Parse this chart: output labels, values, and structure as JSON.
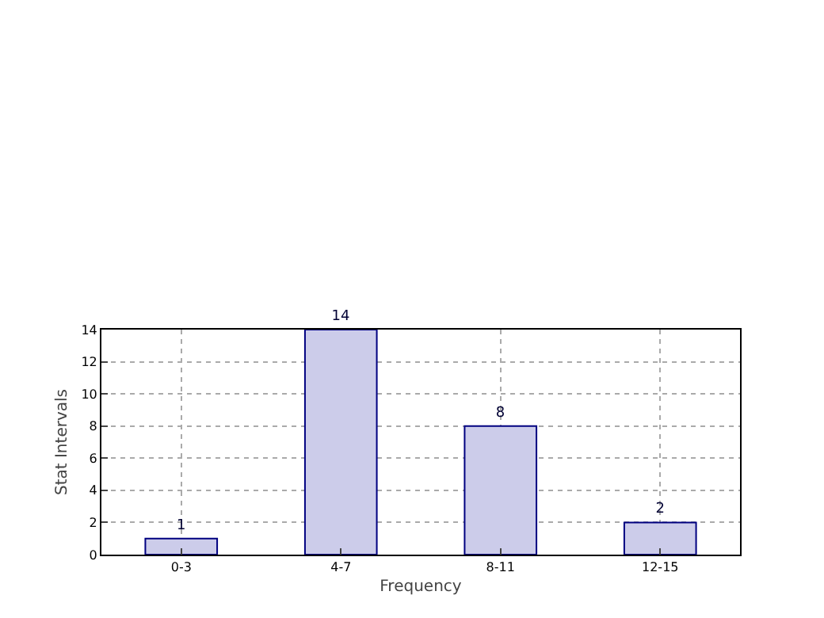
{
  "chart_data": {
    "type": "bar",
    "xlabel": "Frequency",
    "ylabel": "Stat Intervals",
    "categories": [
      "0-3",
      "4-7",
      "8-11",
      "12-15"
    ],
    "values": [
      1,
      14,
      8,
      2
    ],
    "color": "#ccccea",
    "ylim": [
      0,
      14
    ],
    "yticks": [
      0,
      2,
      4,
      6,
      8,
      10,
      12,
      14
    ],
    "grid": true,
    "data_labels": true
  }
}
